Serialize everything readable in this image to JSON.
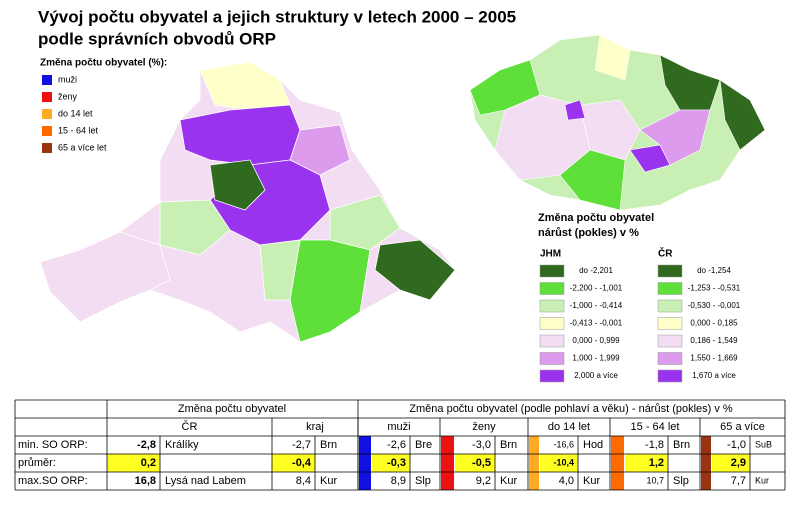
{
  "header": {
    "title_lines": [
      "Vývoj počtu obyvatel a jejich struktury v letech 2000 – 2005",
      "podle správních obvodů ORP"
    ]
  },
  "left_legend": {
    "title": "Změna počtu obyvatel (%):",
    "items": [
      {
        "label": "muži",
        "color": "#1010e0"
      },
      {
        "label": "ženy",
        "color": "#ee1111"
      },
      {
        "label": "do 14 let",
        "color": "#ffaa22"
      },
      {
        "label": "15 - 64 let",
        "color": "#ff6a00"
      },
      {
        "label": "65 a více let",
        "color": "#993311"
      }
    ]
  },
  "right_legend": {
    "title_lines": [
      "Změna počtu obyvatel",
      "nárůst (pokles) v %"
    ],
    "colors": [
      "#2f6a1f",
      "#5fdf3a",
      "#c9f0b4",
      "#ffffc9",
      "#f3ddf3",
      "#dd9bee",
      "#9a33ee"
    ],
    "columns": [
      {
        "heading": "JHM",
        "labels": [
          "do -2,201",
          "-2,200 - -1,001",
          "-1,000 - -0,414",
          "-0,413 - -0,001",
          "0,000 - 0,999",
          "1,000 - 1,999",
          "2,000 a více"
        ]
      },
      {
        "heading": "ČR",
        "labels": [
          "do -1,254",
          "-1,253 - -0,531",
          "-0,530 - -0,001",
          "0,000 - 0,185",
          "0,186 - 1,549",
          "1,550 - 1,669",
          "1,670 a více"
        ]
      }
    ]
  },
  "table": {
    "group_headers": [
      "Změna počtu obyvatel",
      "Změna počtu obyvatel (podle pohlaví a věku) - nárůst (pokles) v %"
    ],
    "column_headers": [
      "ČR",
      "kraj",
      "muži",
      "ženy",
      "do 14 let",
      "15 - 64 let",
      "65 a více"
    ],
    "rows": [
      {
        "label": "min. SO ORP:",
        "values": [
          "-2,8",
          "-2,7",
          "-2,6",
          "-3,0",
          "-16,6",
          "-1,8",
          "-1,0"
        ],
        "places": [
          "Králíky",
          "Brn",
          "Bre",
          "Brn",
          "Hod",
          "Brn",
          "SuB"
        ]
      },
      {
        "label": "průměr:",
        "values": [
          "0,2",
          "-0,4",
          "-0,3",
          "-0,5",
          "-10,4",
          "1,2",
          "2,9"
        ]
      },
      {
        "label": "max.SO ORP:",
        "values": [
          "16,8",
          "8,4",
          "8,9",
          "9,2",
          "4,0",
          "10,7",
          "7,7"
        ],
        "places": [
          "Lysá nad Labem",
          "Kur",
          "Slp",
          "Kur",
          "Kur",
          "Slp",
          "Kur"
        ]
      }
    ]
  }
}
